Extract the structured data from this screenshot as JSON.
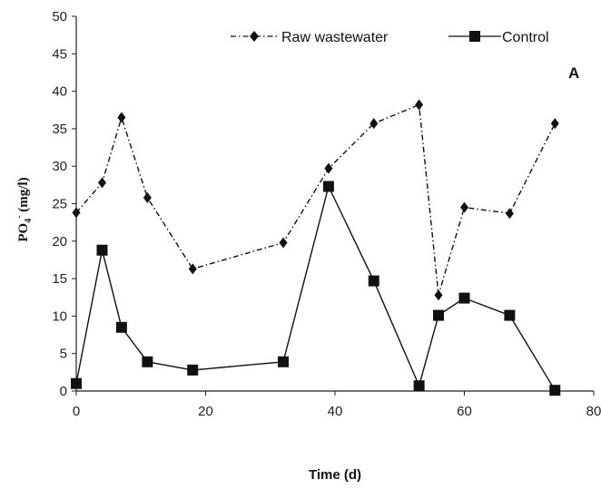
{
  "chart_data": {
    "type": "line",
    "panel_label": "A",
    "xlabel": "Time (d)",
    "ylabel": {
      "main": "PO",
      "sub": "4",
      "sup": "-",
      "rest": " (mg/l)"
    },
    "xlim": [
      0,
      80
    ],
    "ylim": [
      0,
      50
    ],
    "xticks": [
      0,
      20,
      40,
      60,
      80
    ],
    "yticks": [
      0,
      5,
      10,
      15,
      20,
      25,
      30,
      35,
      40,
      45,
      50
    ],
    "grid": false,
    "legend_position": "top",
    "series": [
      {
        "name": "Raw wastewater",
        "style": "dash-dot",
        "marker": "diamond",
        "color": "#111111",
        "x": [
          0,
          4,
          7,
          11,
          18,
          32,
          39,
          46,
          53,
          56,
          60,
          67,
          74
        ],
        "y": [
          23.8,
          27.8,
          36.5,
          25.8,
          16.3,
          19.8,
          29.7,
          35.7,
          38.2,
          12.8,
          24.5,
          23.7,
          35.7
        ]
      },
      {
        "name": "Control",
        "style": "solid",
        "marker": "square",
        "color": "#111111",
        "x": [
          0,
          4,
          7,
          11,
          18,
          32,
          39,
          46,
          53,
          56,
          60,
          67,
          74
        ],
        "y": [
          1.0,
          18.8,
          8.5,
          3.9,
          2.8,
          3.9,
          27.3,
          14.7,
          0.7,
          10.1,
          12.4,
          10.1,
          0.1
        ]
      }
    ]
  }
}
